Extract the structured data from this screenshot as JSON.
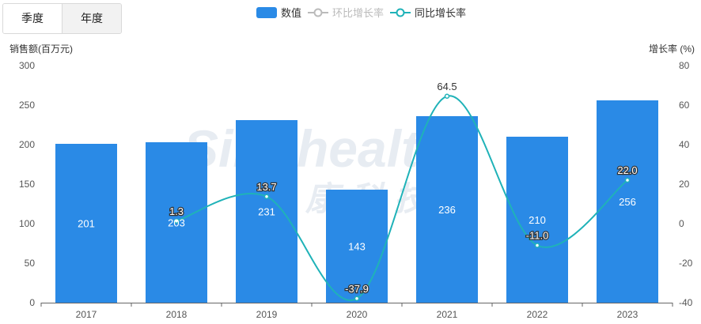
{
  "tabs": [
    {
      "label": "季度",
      "active": false
    },
    {
      "label": "年度",
      "active": true
    }
  ],
  "legend": [
    {
      "name": "数值",
      "type": "bar",
      "color": "#2a8ae6",
      "active": true
    },
    {
      "name": "环比增长率",
      "type": "line",
      "color": "#bbbbbb",
      "active": false
    },
    {
      "name": "同比增长率",
      "type": "line",
      "color": "#1fb2b8",
      "active": true
    }
  ],
  "watermark": {
    "latin": "Sinohealth",
    "chinese": "中康科技"
  },
  "chart_data": {
    "type": "bar",
    "categories": [
      "2017",
      "2018",
      "2019",
      "2020",
      "2021",
      "2022",
      "2023"
    ],
    "series": [
      {
        "name": "数值",
        "type": "bar",
        "axis": "left",
        "color": "#2a8ae6",
        "values": [
          201,
          203,
          231,
          143,
          236,
          210,
          256
        ],
        "labels": [
          "201",
          "203",
          "231",
          "143",
          "236",
          "210",
          "256"
        ]
      },
      {
        "name": "同比增长率",
        "type": "line",
        "axis": "right",
        "color": "#1fb2b8",
        "values": [
          null,
          1.3,
          13.7,
          -37.9,
          64.5,
          -11.0,
          22.0
        ],
        "labels": [
          "",
          "1.3",
          "13.7",
          "-37.9",
          "64.5",
          "-11.0",
          "22.0"
        ]
      }
    ],
    "ylabel_left": "销售额(百万元)",
    "ylabel_right": "增长率 (%)",
    "ylim_left": [
      0,
      300
    ],
    "ylim_right": [
      -40,
      80
    ],
    "yticks_left": [
      "0",
      "50",
      "100",
      "150",
      "200",
      "250",
      "300"
    ],
    "yticks_right": [
      "-40",
      "-20",
      "0",
      "20",
      "40",
      "60",
      "80"
    ],
    "grid": false
  }
}
